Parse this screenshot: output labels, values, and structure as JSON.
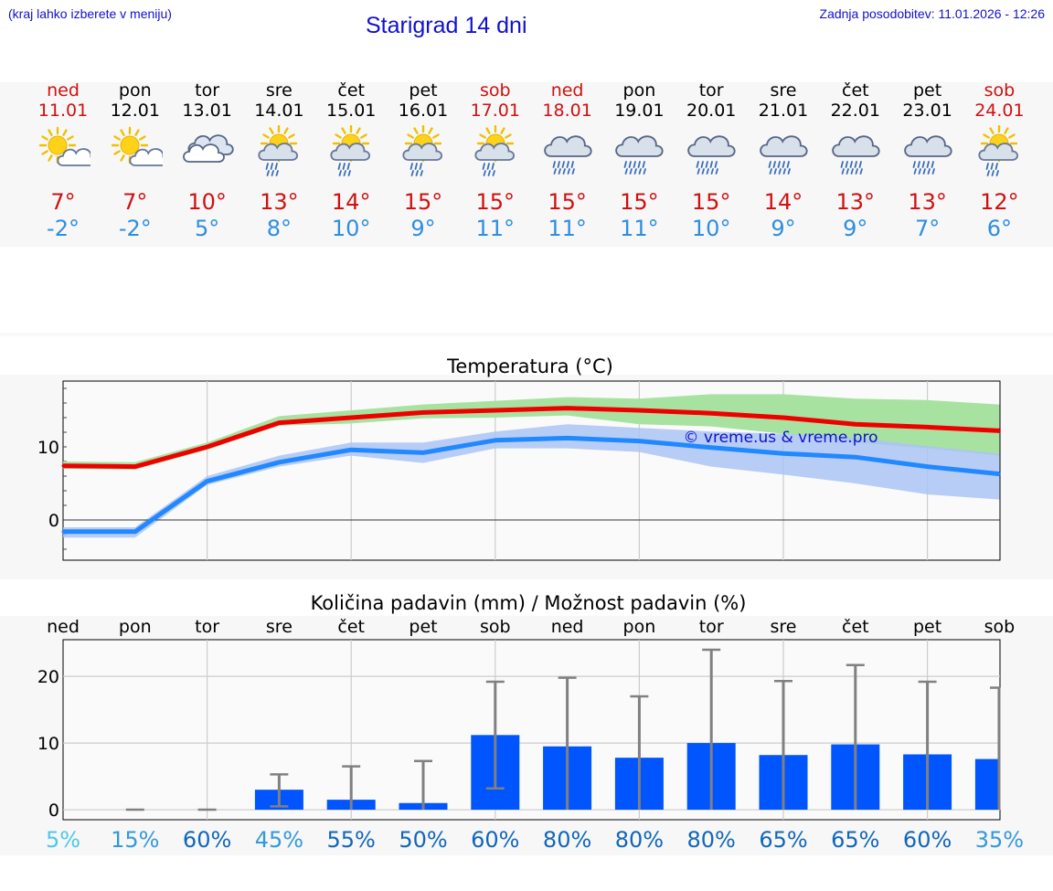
{
  "header": {
    "menu_hint": "(kraj lahko izberete v meniju)",
    "title": "Starigrad 14 dni",
    "updated": "Zadnja posodobitev: 11.01.2026 - 12:26"
  },
  "days": [
    {
      "name": "ned",
      "date": "11.01",
      "weekend": true,
      "icon": "sun-cloud-icon",
      "tmax": "7°",
      "tmin": "-2°"
    },
    {
      "name": "pon",
      "date": "12.01",
      "weekend": false,
      "icon": "sun-cloud-icon",
      "tmax": "7°",
      "tmin": "-2°"
    },
    {
      "name": "tor",
      "date": "13.01",
      "weekend": false,
      "icon": "cloudy-icon",
      "tmax": "10°",
      "tmin": "5°"
    },
    {
      "name": "sre",
      "date": "14.01",
      "weekend": false,
      "icon": "sun-rain-icon",
      "tmax": "13°",
      "tmin": "8°"
    },
    {
      "name": "čet",
      "date": "15.01",
      "weekend": false,
      "icon": "sun-rain-icon",
      "tmax": "14°",
      "tmin": "10°"
    },
    {
      "name": "pet",
      "date": "16.01",
      "weekend": false,
      "icon": "sun-rain-icon",
      "tmax": "15°",
      "tmin": "9°"
    },
    {
      "name": "sob",
      "date": "17.01",
      "weekend": true,
      "icon": "sun-rain-icon",
      "tmax": "15°",
      "tmin": "11°"
    },
    {
      "name": "ned",
      "date": "18.01",
      "weekend": true,
      "icon": "rain-cloud-icon",
      "tmax": "15°",
      "tmin": "11°"
    },
    {
      "name": "pon",
      "date": "19.01",
      "weekend": false,
      "icon": "rain-cloud-icon",
      "tmax": "15°",
      "tmin": "11°"
    },
    {
      "name": "tor",
      "date": "20.01",
      "weekend": false,
      "icon": "rain-cloud-icon",
      "tmax": "15°",
      "tmin": "10°"
    },
    {
      "name": "sre",
      "date": "21.01",
      "weekend": false,
      "icon": "rain-cloud-icon",
      "tmax": "14°",
      "tmin": "9°"
    },
    {
      "name": "čet",
      "date": "22.01",
      "weekend": false,
      "icon": "rain-cloud-icon",
      "tmax": "13°",
      "tmin": "9°"
    },
    {
      "name": "pet",
      "date": "23.01",
      "weekend": false,
      "icon": "rain-cloud-icon",
      "tmax": "13°",
      "tmin": "7°"
    },
    {
      "name": "sob",
      "date": "24.01",
      "weekend": true,
      "icon": "sun-rain-icon",
      "tmax": "12°",
      "tmin": "6°"
    }
  ],
  "colors": {
    "max_line": "#ee0000",
    "min_line": "#2288ff",
    "max_band": "#a8e2a0",
    "min_band": "#aac4f4",
    "bar": "#0055ff",
    "whisker": "#808080",
    "pct_light": "#4ec8e8",
    "pct_mid": "#3399dd",
    "pct_dark": "#1166bb"
  },
  "chart_data": [
    {
      "type": "line",
      "title": "Temperatura (°C)",
      "xlabel": "",
      "ylabel": "",
      "watermark": "© vreme.us & vreme.pro",
      "ylim": [
        -5.5,
        19
      ],
      "yticks": [
        0,
        10
      ],
      "x": [
        0,
        1,
        2,
        3,
        4,
        5,
        6,
        7,
        8,
        9,
        10,
        11,
        12,
        13
      ],
      "series": [
        {
          "name": "max",
          "values": [
            7.4,
            7.3,
            10.0,
            13.3,
            14.0,
            14.7,
            15.0,
            15.3,
            15.0,
            14.6,
            14.0,
            13.1,
            12.7,
            12.2
          ]
        },
        {
          "name": "min",
          "values": [
            -1.6,
            -1.6,
            5.3,
            7.9,
            9.6,
            9.2,
            10.9,
            11.2,
            10.8,
            9.9,
            9.1,
            8.6,
            7.3,
            6.3
          ]
        }
      ],
      "bands": [
        {
          "name": "max-range",
          "low": [
            7.0,
            6.9,
            9.6,
            12.9,
            13.2,
            13.9,
            14.0,
            14.3,
            13.1,
            12.8,
            11.8,
            10.6,
            9.8,
            8.8
          ],
          "high": [
            8.0,
            7.9,
            10.6,
            14.2,
            15.0,
            15.8,
            16.3,
            16.8,
            16.6,
            17.2,
            17.2,
            16.6,
            16.4,
            15.8
          ]
        },
        {
          "name": "min-range",
          "low": [
            -2.4,
            -2.4,
            4.8,
            7.3,
            8.8,
            7.8,
            9.8,
            9.8,
            9.3,
            7.3,
            6.2,
            5.0,
            3.5,
            2.8
          ],
          "high": [
            -1.0,
            -1.0,
            6.0,
            8.8,
            10.6,
            10.6,
            12.1,
            13.1,
            12.6,
            12.1,
            11.8,
            11.3,
            10.1,
            9.1
          ]
        }
      ]
    },
    {
      "type": "bar",
      "title": "Količina padavin (mm) / Možnost padavin (%)",
      "xlabel": "",
      "ylabel": "",
      "ylim": [
        -1.5,
        25.5
      ],
      "yticks": [
        0,
        10,
        20
      ],
      "categories": [
        "ned",
        "pon",
        "tor",
        "sre",
        "čet",
        "pet",
        "sob",
        "ned",
        "pon",
        "tor",
        "sre",
        "čet",
        "pet",
        "sob"
      ],
      "values": [
        0,
        0,
        0,
        3.0,
        1.5,
        1.0,
        11.2,
        9.5,
        7.8,
        10.0,
        8.2,
        9.8,
        8.3,
        7.6
      ],
      "error_low": [
        null,
        0,
        0,
        0.5,
        0,
        0,
        3.2,
        0,
        0,
        0,
        0,
        0,
        0,
        0
      ],
      "error_high": [
        null,
        0,
        0,
        5.3,
        6.5,
        7.3,
        19.2,
        19.8,
        17.0,
        24.0,
        19.3,
        21.7,
        19.2,
        18.3
      ],
      "probability": [
        "5%",
        "15%",
        "60%",
        "45%",
        "55%",
        "50%",
        "60%",
        "80%",
        "80%",
        "80%",
        "65%",
        "65%",
        "60%",
        "35%"
      ],
      "probability_tone": [
        "light",
        "mid",
        "dark",
        "mid",
        "dark",
        "dark",
        "dark",
        "dark",
        "dark",
        "dark",
        "dark",
        "dark",
        "dark",
        "mid"
      ]
    }
  ]
}
